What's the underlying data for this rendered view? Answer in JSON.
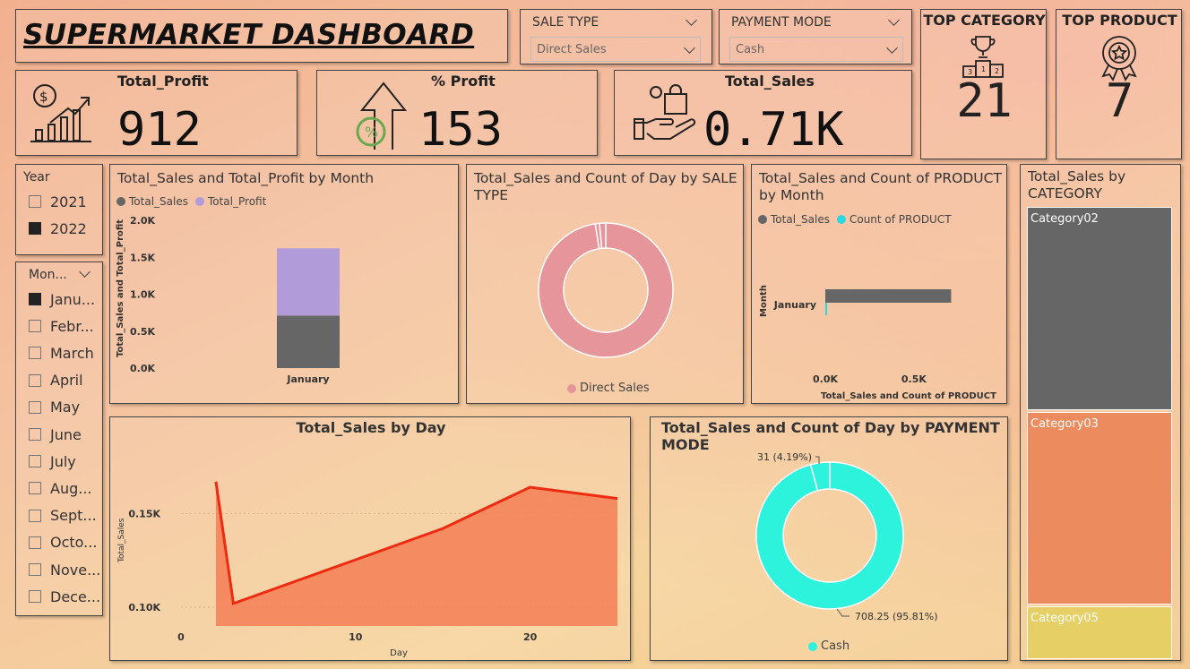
{
  "dashboard_title": "SUPERMARKET DASHBOARD",
  "filters": {
    "sale_type": {
      "label": "SALE TYPE",
      "value": "Direct Sales"
    },
    "payment_mode": {
      "label": "PAYMENT MODE",
      "value": "Cash"
    }
  },
  "top_category": {
    "label": "TOP CATEGORY",
    "value": "21",
    "icon": "podium-trophy-icon"
  },
  "top_product": {
    "label": "TOP PRODUCT",
    "value": "7",
    "icon": "award-badge-icon"
  },
  "kpis": {
    "total_profit": {
      "label": "Total_Profit",
      "value": "912",
      "icon": "growth-chart-icon"
    },
    "pct_profit": {
      "label": "% Profit",
      "value": "153",
      "icon": "percent-up-arrow-icon"
    },
    "total_sales": {
      "label": "Total_Sales",
      "value": "0.71K",
      "icon": "hand-shopping-bag-icon"
    }
  },
  "year_slicer": {
    "label": "Year",
    "items": [
      {
        "label": "2021",
        "checked": false
      },
      {
        "label": "2022",
        "checked": true
      }
    ]
  },
  "month_slicer": {
    "label": "Mon...",
    "items": [
      {
        "label": "Janu...",
        "checked": true
      },
      {
        "label": "Febr...",
        "checked": false
      },
      {
        "label": "March",
        "checked": false
      },
      {
        "label": "April",
        "checked": false
      },
      {
        "label": "May",
        "checked": false
      },
      {
        "label": "June",
        "checked": false
      },
      {
        "label": "July",
        "checked": false
      },
      {
        "label": "Aug...",
        "checked": false
      },
      {
        "label": "Sept...",
        "checked": false
      },
      {
        "label": "Octo...",
        "checked": false
      },
      {
        "label": "Nove...",
        "checked": false
      },
      {
        "label": "Dece...",
        "checked": false
      }
    ]
  },
  "colors": {
    "sales_gray": "#666666",
    "profit_purple": "#b19cd9",
    "cyan_count": "#2ad8e0",
    "pink_donut": "#e6959a",
    "cash_teal": "#2ef3dc",
    "area_fill": "#f47e55",
    "line_red": "#ee2a10",
    "cat02": "#666666",
    "cat03": "#ec8c5e",
    "cat05": "#e6d066"
  },
  "chart_data": [
    {
      "id": "sales_profit_by_month",
      "type": "bar",
      "title": "Total_Sales and Total_Profit by Month",
      "categories": [
        "January"
      ],
      "series": [
        {
          "name": "Total_Sales",
          "values": [
            0.71
          ]
        },
        {
          "name": "Total_Profit",
          "values": [
            0.91
          ]
        }
      ],
      "stacked": true,
      "ylabel": "Total_Sales and Total_Profit",
      "ylim": [
        0,
        2.0
      ],
      "yticks": [
        "0.0K",
        "0.5K",
        "1.0K",
        "1.5K",
        "2.0K"
      ],
      "legend": "top-left"
    },
    {
      "id": "sales_count_by_sale_type",
      "type": "pie",
      "title": "Total_Sales and Count of Day by SALE TYPE",
      "donut": true,
      "labels": [
        "Direct Sales"
      ],
      "values": [
        97.5
      ],
      "small_slices": [
        1.0,
        1.5
      ],
      "legend": "bottom"
    },
    {
      "id": "sales_count_product_by_month",
      "type": "bar",
      "orientation": "horizontal",
      "title": "Total_Sales and Count of PRODUCT by Month",
      "categories": [
        "January"
      ],
      "series": [
        {
          "name": "Total_Sales",
          "values": [
            0.71
          ]
        },
        {
          "name": "Count of PRODUCT",
          "values": [
            0.01
          ]
        }
      ],
      "xlabel": "Total_Sales and Count of PRODUCT",
      "ylabel": "Month",
      "xticks": [
        "0.0K",
        "0.5K"
      ],
      "xlim": [
        0,
        0.9
      ],
      "legend": "top-left"
    },
    {
      "id": "sales_by_day",
      "type": "area",
      "title": "Total_Sales by Day",
      "x": [
        2,
        3,
        15,
        20,
        25
      ],
      "y": [
        0.167,
        0.102,
        0.142,
        0.164,
        0.158
      ],
      "xlabel": "Day",
      "ylabel": "Total_Sales",
      "xticks": [
        "0",
        "10",
        "20"
      ],
      "xlim": [
        0,
        25
      ],
      "yticks": [
        "0.10K",
        "0.15K"
      ],
      "ylim": [
        0.09,
        0.175
      ]
    },
    {
      "id": "sales_count_by_payment_mode",
      "type": "pie",
      "title": "Total_Sales and Count of Day by PAYMENT MODE",
      "donut": true,
      "labels": [
        "Cash",
        "Count of Day"
      ],
      "values": [
        708.25,
        31
      ],
      "data_labels": [
        "708.25 (95.81%)",
        "31 (4.19%)"
      ],
      "legend": "bottom"
    },
    {
      "id": "sales_by_category",
      "type": "treemap",
      "title": "Total_Sales by CATEGORY",
      "categories": [
        "Category02",
        "Category03",
        "Category05"
      ],
      "values": [
        228,
        216,
        61
      ]
    }
  ]
}
